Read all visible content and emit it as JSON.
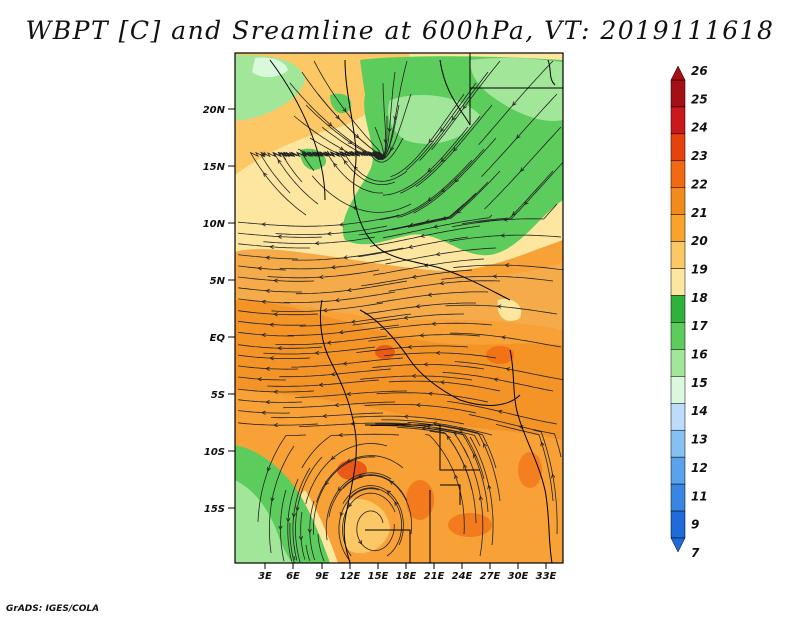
{
  "title": "WBPT [C] and Sreamline at 600hPa, VT: 2019111618",
  "credit": "GrADS: IGES/COLA",
  "map": {
    "lon_labels": [
      "3E",
      "6E",
      "9E",
      "12E",
      "15E",
      "18E",
      "21E",
      "24E",
      "27E",
      "30E",
      "33E"
    ],
    "lat_labels": [
      "20N",
      "15N",
      "10N",
      "5N",
      "EQ",
      "5S",
      "10S",
      "15S"
    ]
  },
  "colorbar": {
    "labels": [
      "26",
      "25",
      "24",
      "23",
      "22",
      "21",
      "20",
      "19",
      "18",
      "17",
      "16",
      "15",
      "14",
      "13",
      "12",
      "11",
      "9",
      "7"
    ],
    "colors": [
      "#a50f15",
      "#cb181d",
      "#e6420e",
      "#f16913",
      "#f38b1c",
      "#f9a32a",
      "#fbc865",
      "#fde7a0",
      "#2fb13b",
      "#5ccc5c",
      "#a2e69a",
      "#daf8dc",
      "#bcdcf9",
      "#86bff2",
      "#5aa3ec",
      "#3886e4",
      "#1f6bdb"
    ]
  }
}
